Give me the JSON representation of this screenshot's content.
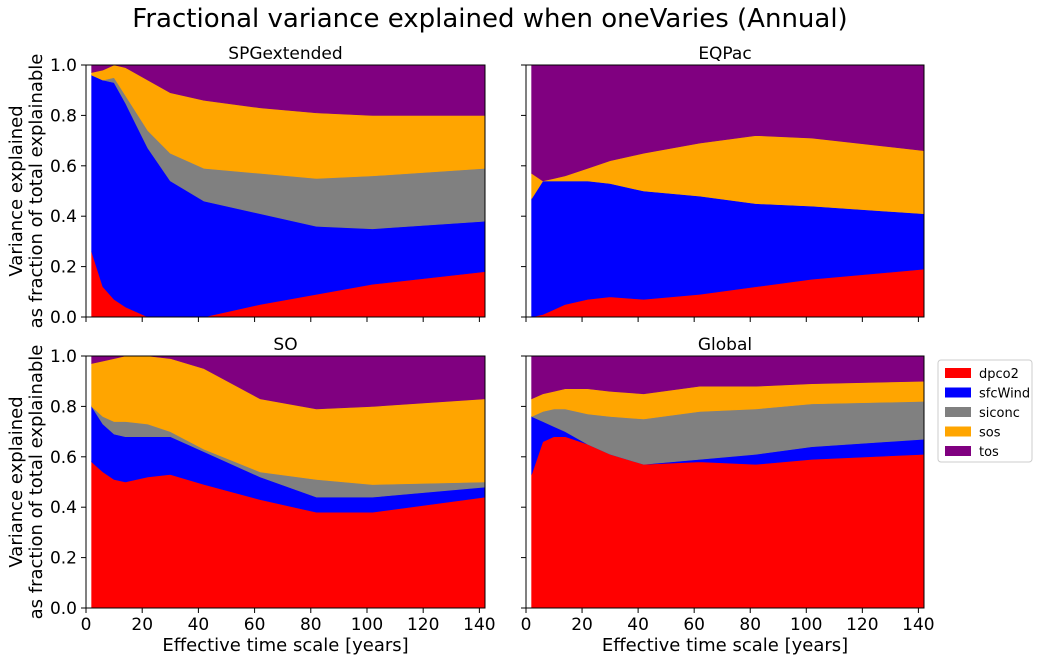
{
  "figure_title": "Fractional variance explained when oneVaries (Annual)",
  "legend": [
    "dpco2",
    "sfcWind",
    "siconc",
    "sos",
    "tos"
  ],
  "colors": {
    "dpco2": "#ff0000",
    "sfcWind": "#0000ff",
    "siconc": "#808080",
    "sos": "#ffa500",
    "tos": "#800080"
  },
  "chart_data": [
    {
      "type": "area",
      "stacked": true,
      "title": "SPGextended",
      "xlabel": "",
      "ylabel": "Variance explained\nas fraction of total explainable",
      "xlim": [
        0,
        142
      ],
      "ylim": [
        0,
        1
      ],
      "x": [
        2,
        6,
        10,
        14,
        22,
        30,
        42,
        62,
        82,
        102,
        142
      ],
      "series": [
        {
          "name": "dpco2",
          "values": [
            0.26,
            0.12,
            0.07,
            0.04,
            0.0,
            0.0,
            0.0,
            0.05,
            0.09,
            0.13,
            0.18
          ]
        },
        {
          "name": "sfcWind",
          "values": [
            0.7,
            0.82,
            0.86,
            0.81,
            0.67,
            0.54,
            0.46,
            0.36,
            0.27,
            0.22,
            0.2
          ]
        },
        {
          "name": "siconc",
          "values": [
            0.0,
            0.0,
            0.02,
            0.03,
            0.07,
            0.11,
            0.13,
            0.16,
            0.19,
            0.21,
            0.21
          ]
        },
        {
          "name": "sos",
          "values": [
            0.01,
            0.04,
            0.05,
            0.11,
            0.2,
            0.24,
            0.27,
            0.26,
            0.26,
            0.24,
            0.21
          ]
        },
        {
          "name": "tos",
          "values": [
            0.03,
            0.02,
            0.0,
            0.01,
            0.06,
            0.11,
            0.14,
            0.17,
            0.19,
            0.2,
            0.2
          ]
        }
      ]
    },
    {
      "type": "area",
      "stacked": true,
      "title": "EQPac",
      "xlabel": "",
      "ylabel": "",
      "xlim": [
        0,
        142
      ],
      "ylim": [
        0,
        1
      ],
      "x": [
        2,
        6,
        10,
        14,
        22,
        30,
        42,
        62,
        82,
        102,
        142
      ],
      "series": [
        {
          "name": "dpco2",
          "values": [
            0.0,
            0.01,
            0.03,
            0.05,
            0.07,
            0.08,
            0.07,
            0.09,
            0.12,
            0.15,
            0.19
          ]
        },
        {
          "name": "sfcWind",
          "values": [
            0.47,
            0.53,
            0.51,
            0.49,
            0.47,
            0.45,
            0.43,
            0.39,
            0.33,
            0.29,
            0.22
          ]
        },
        {
          "name": "siconc",
          "values": [
            0.0,
            0.0,
            0.0,
            0.0,
            0.0,
            0.0,
            0.0,
            0.0,
            0.0,
            0.0,
            0.0
          ]
        },
        {
          "name": "sos",
          "values": [
            0.1,
            0.0,
            0.01,
            0.02,
            0.05,
            0.09,
            0.15,
            0.21,
            0.27,
            0.27,
            0.25
          ]
        },
        {
          "name": "tos",
          "values": [
            0.43,
            0.46,
            0.45,
            0.44,
            0.41,
            0.38,
            0.35,
            0.31,
            0.28,
            0.29,
            0.34
          ]
        }
      ]
    },
    {
      "type": "area",
      "stacked": true,
      "title": "SO",
      "xlabel": "Effective time scale [years]",
      "ylabel": "Variance explained\nas fraction of total explainable",
      "xlim": [
        0,
        142
      ],
      "ylim": [
        0,
        1
      ],
      "x": [
        2,
        6,
        10,
        14,
        22,
        30,
        42,
        62,
        82,
        102,
        142
      ],
      "series": [
        {
          "name": "dpco2",
          "values": [
            0.58,
            0.54,
            0.51,
            0.5,
            0.52,
            0.53,
            0.49,
            0.43,
            0.38,
            0.38,
            0.44
          ]
        },
        {
          "name": "sfcWind",
          "values": [
            0.22,
            0.19,
            0.18,
            0.18,
            0.16,
            0.15,
            0.13,
            0.09,
            0.06,
            0.06,
            0.04
          ]
        },
        {
          "name": "siconc",
          "values": [
            0.0,
            0.03,
            0.05,
            0.06,
            0.05,
            0.02,
            0.01,
            0.02,
            0.07,
            0.05,
            0.02
          ]
        },
        {
          "name": "sos",
          "values": [
            0.17,
            0.22,
            0.25,
            0.26,
            0.27,
            0.29,
            0.32,
            0.29,
            0.28,
            0.31,
            0.33
          ]
        },
        {
          "name": "tos",
          "values": [
            0.03,
            0.02,
            0.01,
            0.0,
            0.0,
            0.01,
            0.05,
            0.17,
            0.21,
            0.2,
            0.17
          ]
        }
      ]
    },
    {
      "type": "area",
      "stacked": true,
      "title": "Global",
      "xlabel": "Effective time scale [years]",
      "ylabel": "",
      "xlim": [
        0,
        142
      ],
      "ylim": [
        0,
        1
      ],
      "x": [
        2,
        6,
        10,
        14,
        22,
        30,
        42,
        62,
        82,
        102,
        142
      ],
      "series": [
        {
          "name": "dpco2",
          "values": [
            0.53,
            0.66,
            0.68,
            0.68,
            0.65,
            0.61,
            0.57,
            0.58,
            0.57,
            0.59,
            0.61
          ]
        },
        {
          "name": "sfcWind",
          "values": [
            0.23,
            0.08,
            0.04,
            0.02,
            0.0,
            0.0,
            0.0,
            0.01,
            0.04,
            0.05,
            0.06
          ]
        },
        {
          "name": "siconc",
          "values": [
            0.0,
            0.04,
            0.07,
            0.09,
            0.12,
            0.15,
            0.18,
            0.19,
            0.18,
            0.17,
            0.15
          ]
        },
        {
          "name": "sos",
          "values": [
            0.07,
            0.07,
            0.07,
            0.08,
            0.1,
            0.1,
            0.1,
            0.1,
            0.09,
            0.08,
            0.08
          ]
        },
        {
          "name": "tos",
          "values": [
            0.17,
            0.15,
            0.14,
            0.13,
            0.13,
            0.14,
            0.15,
            0.12,
            0.12,
            0.11,
            0.1
          ]
        }
      ]
    }
  ],
  "xticks": [
    0,
    20,
    40,
    60,
    80,
    100,
    120,
    140
  ],
  "yticks": [
    0.0,
    0.2,
    0.4,
    0.6,
    0.8,
    1.0
  ],
  "ytick_labels": [
    "0.0",
    "0.2",
    "0.4",
    "0.6",
    "0.8",
    "1.0"
  ]
}
